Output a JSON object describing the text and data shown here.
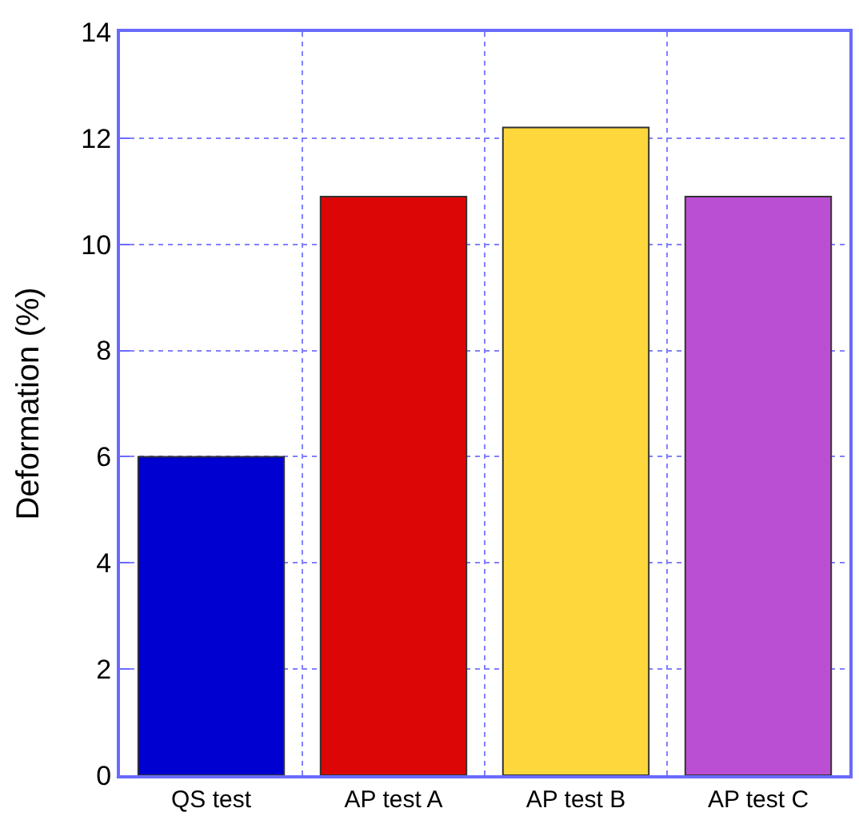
{
  "chart_data": {
    "type": "bar",
    "ylabel": "Deformation (%)",
    "categories": [
      "QS test",
      "AP test A",
      "AP test B",
      "AP test C"
    ],
    "values": [
      6.0,
      10.9,
      12.2,
      10.9
    ],
    "colors": [
      "#0000d0",
      "#dc0606",
      "#fdd73c",
      "#bb4fd4"
    ],
    "ylim": [
      0,
      14
    ],
    "yticks": [
      0,
      2,
      4,
      6,
      8,
      10,
      12,
      14
    ],
    "grid": true
  }
}
